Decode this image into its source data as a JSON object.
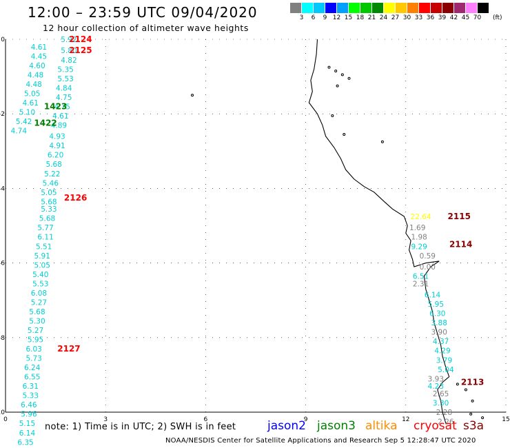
{
  "header": {
    "title": "12:00 – 23:59 UTC 09/04/2020",
    "subtitle": "12 hour collection of altimeter wave heights"
  },
  "legend": {
    "colors": [
      "#808080",
      "#00ffff",
      "#00c8ff",
      "#0000ff",
      "#00a0ff",
      "#00ff00",
      "#00c800",
      "#008800",
      "#ffff00",
      "#ffc800",
      "#ff8000",
      "#ff0000",
      "#c80000",
      "#880000",
      "#a0286e",
      "#ff80ff",
      "#000000"
    ],
    "labels": [
      "3",
      "6",
      "9",
      "12",
      "15",
      "18",
      "21",
      "24",
      "27",
      "30",
      "33",
      "36",
      "39",
      "42",
      "45",
      "70"
    ],
    "unit": "(ft)"
  },
  "chart_data": {
    "type": "scatter",
    "xlim": [
      0,
      15
    ],
    "ylim": [
      0,
      10
    ],
    "x_ticks": [
      0,
      3,
      6,
      9,
      12,
      15
    ],
    "y_ticks": [
      0,
      -2,
      -4,
      -6,
      -8,
      -10
    ],
    "y_tick_labels": [
      "0",
      "-2",
      "-4",
      "-6",
      "-8",
      "-10"
    ],
    "grid": "dotted",
    "track_left": {
      "color": "#00ced1",
      "points": [
        {
          "x": 1.0,
          "y": 0.2,
          "v": "4.61"
        },
        {
          "x": 1.0,
          "y": 0.45,
          "v": "4.45"
        },
        {
          "x": 0.95,
          "y": 0.7,
          "v": "4.60"
        },
        {
          "x": 0.9,
          "y": 0.95,
          "v": "4.48"
        },
        {
          "x": 0.85,
          "y": 1.2,
          "v": "4.48"
        },
        {
          "x": 0.8,
          "y": 1.45,
          "v": "5.05"
        },
        {
          "x": 0.75,
          "y": 1.7,
          "v": "4.61"
        },
        {
          "x": 0.65,
          "y": 1.95,
          "v": "5.10"
        },
        {
          "x": 0.55,
          "y": 2.2,
          "v": "5.42"
        },
        {
          "x": 0.4,
          "y": 2.45,
          "v": "4.74"
        },
        {
          "x": 1.9,
          "y": 0.0,
          "v": "5.92"
        },
        {
          "x": 1.9,
          "y": 0.3,
          "v": "5.80"
        },
        {
          "x": 1.9,
          "y": 0.55,
          "v": "4.82"
        },
        {
          "x": 1.8,
          "y": 0.8,
          "v": "5.35"
        },
        {
          "x": 1.8,
          "y": 1.05,
          "v": "5.53"
        },
        {
          "x": 1.75,
          "y": 1.3,
          "v": "4.84"
        },
        {
          "x": 1.75,
          "y": 1.55,
          "v": "4.75"
        },
        {
          "x": 1.7,
          "y": 1.8,
          "v": "4.75"
        },
        {
          "x": 1.65,
          "y": 2.05,
          "v": "4.61"
        },
        {
          "x": 1.6,
          "y": 2.3,
          "v": "4.89"
        },
        {
          "x": 1.55,
          "y": 2.6,
          "v": "4.93"
        },
        {
          "x": 1.55,
          "y": 2.85,
          "v": "4.91"
        },
        {
          "x": 1.5,
          "y": 3.1,
          "v": "6.20"
        },
        {
          "x": 1.45,
          "y": 3.35,
          "v": "5.68"
        },
        {
          "x": 1.4,
          "y": 3.6,
          "v": "5.22"
        },
        {
          "x": 1.35,
          "y": 3.85,
          "v": "5.46"
        },
        {
          "x": 1.3,
          "y": 4.1,
          "v": "5.05"
        },
        {
          "x": 1.3,
          "y": 4.35,
          "v": "5.68"
        },
        {
          "x": 1.3,
          "y": 4.55,
          "v": "5.33"
        },
        {
          "x": 1.25,
          "y": 4.8,
          "v": "5.68"
        },
        {
          "x": 1.2,
          "y": 5.05,
          "v": "5.77"
        },
        {
          "x": 1.2,
          "y": 5.3,
          "v": "6.11"
        },
        {
          "x": 1.15,
          "y": 5.55,
          "v": "5.51"
        },
        {
          "x": 1.1,
          "y": 5.8,
          "v": "5.91"
        },
        {
          "x": 1.1,
          "y": 6.05,
          "v": "5.05"
        },
        {
          "x": 1.05,
          "y": 6.3,
          "v": "5.40"
        },
        {
          "x": 1.05,
          "y": 6.55,
          "v": "5.53"
        },
        {
          "x": 1.0,
          "y": 6.8,
          "v": "6.08"
        },
        {
          "x": 1.0,
          "y": 7.05,
          "v": "5.27"
        },
        {
          "x": 0.95,
          "y": 7.3,
          "v": "5.68"
        },
        {
          "x": 0.95,
          "y": 7.55,
          "v": "5.30"
        },
        {
          "x": 0.9,
          "y": 7.8,
          "v": "5.27"
        },
        {
          "x": 0.9,
          "y": 8.05,
          "v": "5.95"
        },
        {
          "x": 0.85,
          "y": 8.3,
          "v": "6.03"
        },
        {
          "x": 0.85,
          "y": 8.55,
          "v": "5.73"
        },
        {
          "x": 0.8,
          "y": 8.8,
          "v": "6.24"
        },
        {
          "x": 0.8,
          "y": 9.05,
          "v": "6.55"
        },
        {
          "x": 0.75,
          "y": 9.3,
          "v": "6.31"
        },
        {
          "x": 0.75,
          "y": 9.55,
          "v": "5.33"
        },
        {
          "x": 0.7,
          "y": 9.8,
          "v": "6.46"
        },
        {
          "x": 0.7,
          "y": 10.05,
          "v": "5.96"
        },
        {
          "x": 0.65,
          "y": 10.3,
          "v": "5.15"
        },
        {
          "x": 0.65,
          "y": 10.55,
          "v": "6.14"
        },
        {
          "x": 0.6,
          "y": 10.8,
          "v": "6.35"
        }
      ]
    },
    "track_right": {
      "points": [
        {
          "x": 12.45,
          "y": 4.75,
          "v": "22.64",
          "c": "#ffff00"
        },
        {
          "x": 12.35,
          "y": 5.05,
          "v": "1.69",
          "c": "#808080"
        },
        {
          "x": 12.4,
          "y": 5.3,
          "v": "1.98",
          "c": "#808080"
        },
        {
          "x": 12.4,
          "y": 5.55,
          "v": "9.29",
          "c": "#00ced1"
        },
        {
          "x": 12.65,
          "y": 5.8,
          "v": "0.59",
          "c": "#808080"
        },
        {
          "x": 12.65,
          "y": 6.1,
          "v": "0.00",
          "c": "#808080"
        },
        {
          "x": 12.45,
          "y": 6.35,
          "v": "6.51",
          "c": "#00ced1"
        },
        {
          "x": 12.45,
          "y": 6.55,
          "v": "2.31",
          "c": "#808080"
        },
        {
          "x": 12.8,
          "y": 6.85,
          "v": "6.14",
          "c": "#00ced1"
        },
        {
          "x": 12.9,
          "y": 7.1,
          "v": "5.95",
          "c": "#00ced1"
        },
        {
          "x": 12.95,
          "y": 7.35,
          "v": "6.30",
          "c": "#00ced1"
        },
        {
          "x": 13.0,
          "y": 7.6,
          "v": "3.88",
          "c": "#00ced1"
        },
        {
          "x": 13.0,
          "y": 7.85,
          "v": "3.90",
          "c": "#808080"
        },
        {
          "x": 13.05,
          "y": 8.1,
          "v": "4.37",
          "c": "#00ced1"
        },
        {
          "x": 13.1,
          "y": 8.35,
          "v": "4.29",
          "c": "#00ced1"
        },
        {
          "x": 13.15,
          "y": 8.6,
          "v": "3.79",
          "c": "#00ced1"
        },
        {
          "x": 13.2,
          "y": 8.85,
          "v": "5.04",
          "c": "#00ced1"
        },
        {
          "x": 12.9,
          "y": 9.1,
          "v": "3.93",
          "c": "#808080"
        },
        {
          "x": 12.9,
          "y": 9.3,
          "v": "4.23",
          "c": "#00ced1"
        },
        {
          "x": 13.05,
          "y": 9.5,
          "v": "2.65",
          "c": "#808080"
        },
        {
          "x": 13.05,
          "y": 9.75,
          "v": "3.30",
          "c": "#00ced1"
        },
        {
          "x": 13.15,
          "y": 10.0,
          "v": "2.28",
          "c": "#808080"
        },
        {
          "x": 13.2,
          "y": 10.25,
          "v": "2.26",
          "c": "#808080"
        }
      ]
    },
    "time_labels": [
      {
        "x": 2.25,
        "y": 0.0,
        "text": "2124",
        "color": "#ff0000"
      },
      {
        "x": 2.25,
        "y": 0.3,
        "text": "2125",
        "color": "#ff0000"
      },
      {
        "x": 1.5,
        "y": 1.8,
        "text": "1423",
        "color": "#008000"
      },
      {
        "x": 1.2,
        "y": 2.25,
        "text": "1422",
        "color": "#008000"
      },
      {
        "x": 2.1,
        "y": 4.25,
        "text": "2126",
        "color": "#ff0000"
      },
      {
        "x": 1.9,
        "y": 8.3,
        "text": "2127",
        "color": "#ff0000"
      },
      {
        "x": 13.6,
        "y": 4.75,
        "text": "2115",
        "color": "#880000"
      },
      {
        "x": 13.65,
        "y": 5.5,
        "text": "2114",
        "color": "#880000"
      },
      {
        "x": 14.0,
        "y": 9.2,
        "text": "2113",
        "color": "#880000"
      }
    ],
    "coastline": [
      [
        9.35,
        0.0
      ],
      [
        9.32,
        0.4
      ],
      [
        9.25,
        0.8
      ],
      [
        9.15,
        1.1
      ],
      [
        9.2,
        1.4
      ],
      [
        9.1,
        1.7
      ],
      [
        9.35,
        2.0
      ],
      [
        9.5,
        2.3
      ],
      [
        9.6,
        2.6
      ],
      [
        9.85,
        2.9
      ],
      [
        10.05,
        3.2
      ],
      [
        10.2,
        3.5
      ],
      [
        10.45,
        3.75
      ],
      [
        10.75,
        3.95
      ],
      [
        11.05,
        4.1
      ],
      [
        11.35,
        4.35
      ],
      [
        11.6,
        4.55
      ],
      [
        11.95,
        4.75
      ],
      [
        12.05,
        5.0
      ],
      [
        12.0,
        5.2
      ],
      [
        12.15,
        5.4
      ],
      [
        12.1,
        5.65
      ],
      [
        12.2,
        5.9
      ],
      [
        12.25,
        6.1
      ],
      [
        12.6,
        6.0
      ],
      [
        13.0,
        5.95
      ],
      [
        12.75,
        6.1
      ],
      [
        12.55,
        6.35
      ],
      [
        12.6,
        6.7
      ],
      [
        12.7,
        7.0
      ],
      [
        12.8,
        7.3
      ],
      [
        12.85,
        7.6
      ],
      [
        12.95,
        7.9
      ],
      [
        13.05,
        8.2
      ],
      [
        13.1,
        8.5
      ],
      [
        13.2,
        8.8
      ],
      [
        13.3,
        9.05
      ],
      [
        13.1,
        9.2
      ],
      [
        12.95,
        9.4
      ],
      [
        13.05,
        9.7
      ],
      [
        13.1,
        10.0
      ],
      [
        13.2,
        10.3
      ]
    ]
  },
  "note": "note:  1) Time is in UTC;  2) SWH is in feet",
  "satellites": [
    {
      "name": "jason2",
      "color": "#0000ff"
    },
    {
      "name": "jason3",
      "color": "#008000"
    },
    {
      "name": "altika",
      "color": "#ff8c00"
    },
    {
      "name": "cryosat",
      "color": "#ff0000"
    },
    {
      "name": "s3a",
      "color": "#880000"
    }
  ],
  "footer": "NOAA/NESDIS Center for Satellite Applications and Research     Sep  5 12:28:47 UTC 2020"
}
